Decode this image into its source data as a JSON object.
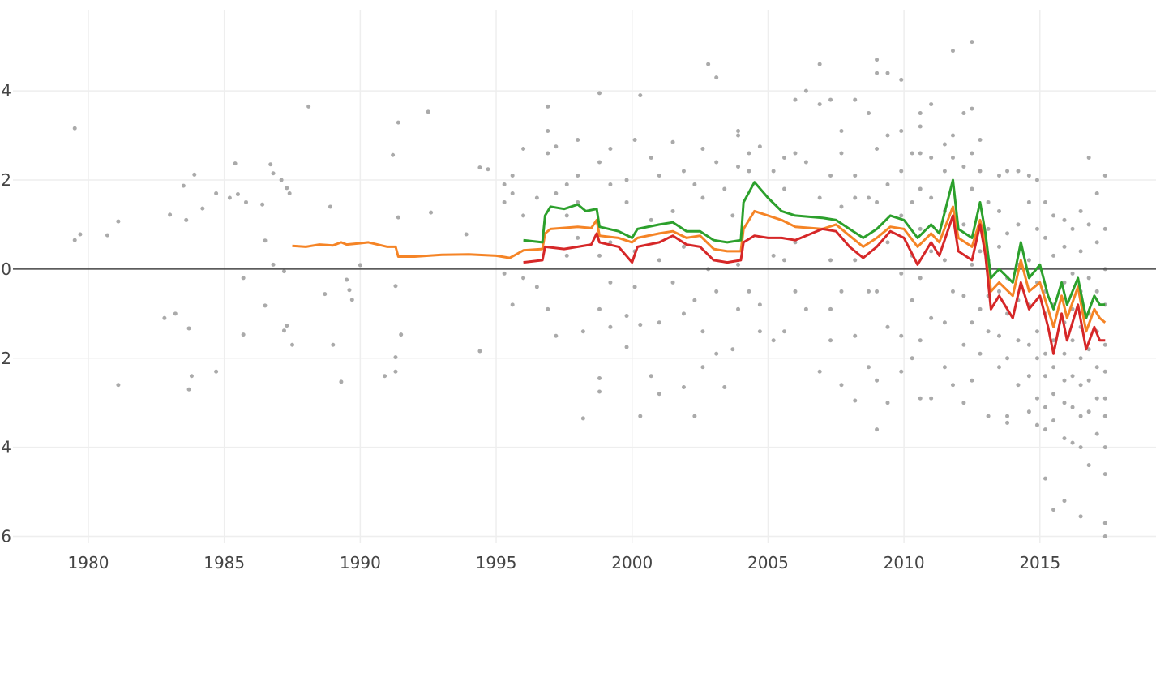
{
  "chart_data": {
    "type": "scatter",
    "title": "",
    "xlabel": "",
    "ylabel": "",
    "xlim": [
      1976.75,
      2019.27
    ],
    "ylim": [
      -6.7,
      6.04
    ],
    "grid": true,
    "x_ticks": [
      1980,
      1985,
      1990,
      1995,
      2000,
      2005,
      2010,
      2015
    ],
    "x_tick_labels": [
      "1980",
      "1985",
      "1990",
      "1995",
      "2000",
      "2005",
      "2010",
      "2015"
    ],
    "y_ticks": [
      4,
      2,
      0,
      -2,
      -4,
      -6
    ],
    "y_tick_labels": [
      "4",
      "2",
      "0",
      "−2",
      "−4",
      "−6"
    ],
    "colors": {
      "scatter": "#aaaaaa",
      "green": "#2ca02c",
      "orange": "#f58426",
      "red": "#d62728",
      "grid": "#eeeeee",
      "zeroline": "#444444"
    },
    "scatter": [
      {
        "x": 1979.5,
        "y": [
          3.16,
          0.65
        ]
      },
      {
        "x": 1979.7,
        "y": [
          0.78
        ]
      },
      {
        "x": 1980.7,
        "y": [
          0.76
        ]
      },
      {
        "x": 1981.1,
        "y": [
          1.07,
          -2.6
        ]
      },
      {
        "x": 1982.8,
        "y": [
          -1.1
        ]
      },
      {
        "x": 1983.0,
        "y": [
          1.22
        ]
      },
      {
        "x": 1983.2,
        "y": [
          -1.0
        ]
      },
      {
        "x": 1983.5,
        "y": [
          1.87
        ]
      },
      {
        "x": 1983.6,
        "y": [
          1.1
        ]
      },
      {
        "x": 1983.7,
        "y": [
          -1.33,
          -2.7
        ]
      },
      {
        "x": 1983.8,
        "y": [
          -2.4
        ]
      },
      {
        "x": 1983.9,
        "y": [
          2.12
        ]
      },
      {
        "x": 1984.2,
        "y": [
          1.36
        ]
      },
      {
        "x": 1984.7,
        "y": [
          -2.3,
          1.7
        ]
      },
      {
        "x": 1985.2,
        "y": [
          1.6
        ]
      },
      {
        "x": 1985.4,
        "y": [
          2.37
        ]
      },
      {
        "x": 1985.5,
        "y": [
          1.68
        ]
      },
      {
        "x": 1985.7,
        "y": [
          -1.47,
          -0.2
        ]
      },
      {
        "x": 1985.8,
        "y": [
          1.5
        ]
      },
      {
        "x": 1986.4,
        "y": [
          1.45
        ]
      },
      {
        "x": 1986.5,
        "y": [
          -0.82,
          0.64
        ]
      },
      {
        "x": 1986.7,
        "y": [
          2.35
        ]
      },
      {
        "x": 1986.8,
        "y": [
          2.15,
          0.1
        ]
      },
      {
        "x": 1987.1,
        "y": [
          2.0
        ]
      },
      {
        "x": 1987.2,
        "y": [
          -0.05,
          -1.38
        ]
      },
      {
        "x": 1987.3,
        "y": [
          -1.27,
          1.82
        ]
      },
      {
        "x": 1987.4,
        "y": [
          1.7
        ]
      },
      {
        "x": 1987.5,
        "y": [
          -1.7
        ]
      },
      {
        "x": 1988.1,
        "y": [
          3.65
        ]
      },
      {
        "x": 1988.7,
        "y": [
          -0.56
        ]
      },
      {
        "x": 1988.9,
        "y": [
          1.4
        ]
      },
      {
        "x": 1989.0,
        "y": [
          -1.7
        ]
      },
      {
        "x": 1989.3,
        "y": [
          -2.53
        ]
      },
      {
        "x": 1989.5,
        "y": [
          -0.24
        ]
      },
      {
        "x": 1989.6,
        "y": [
          -0.47
        ]
      },
      {
        "x": 1989.7,
        "y": [
          -0.69
        ]
      },
      {
        "x": 1990.0,
        "y": [
          0.09
        ]
      },
      {
        "x": 1990.9,
        "y": [
          -2.4
        ]
      },
      {
        "x": 1991.2,
        "y": [
          2.56
        ]
      },
      {
        "x": 1991.3,
        "y": [
          -2.3,
          -1.98,
          -0.38
        ]
      },
      {
        "x": 1991.4,
        "y": [
          3.29,
          1.16
        ]
      },
      {
        "x": 1991.5,
        "y": [
          -1.47
        ]
      },
      {
        "x": 1992.5,
        "y": [
          3.53
        ]
      },
      {
        "x": 1992.6,
        "y": [
          1.27
        ]
      },
      {
        "x": 1993.9,
        "y": [
          0.78
        ]
      },
      {
        "x": 1994.4,
        "y": [
          -1.84,
          2.28
        ]
      },
      {
        "x": 1994.7,
        "y": [
          2.24
        ]
      },
      {
        "x": 1995.3,
        "y": [
          1.9,
          1.5,
          -0.1
        ]
      },
      {
        "x": 1995.6,
        "y": [
          2.1,
          1.7,
          -0.8
        ]
      },
      {
        "x": 1996.0,
        "y": [
          2.7,
          1.2,
          -0.2
        ]
      },
      {
        "x": 1996.5,
        "y": [
          1.6,
          -0.4
        ]
      },
      {
        "x": 1996.9,
        "y": [
          3.65,
          3.1,
          2.6,
          -0.9
        ]
      },
      {
        "x": 1997.2,
        "y": [
          2.75,
          1.7,
          -1.5
        ]
      },
      {
        "x": 1997.6,
        "y": [
          1.9,
          1.2,
          0.3
        ]
      },
      {
        "x": 1998.0,
        "y": [
          2.9,
          2.1,
          1.5,
          0.7
        ]
      },
      {
        "x": 1998.2,
        "y": [
          -3.35,
          -1.4
        ]
      },
      {
        "x": 1998.8,
        "y": [
          3.95,
          2.4,
          -0.9,
          -2.45,
          -2.75,
          0.3
        ]
      },
      {
        "x": 1999.2,
        "y": [
          2.7,
          1.9,
          0.6,
          -0.3,
          -1.3
        ]
      },
      {
        "x": 1999.8,
        "y": [
          2.0,
          1.5,
          -1.05,
          -1.75
        ]
      },
      {
        "x": 2000.1,
        "y": [
          2.9,
          0.4,
          -0.4
        ]
      },
      {
        "x": 2000.3,
        "y": [
          3.9,
          -3.3,
          -1.25
        ]
      },
      {
        "x": 2000.7,
        "y": [
          2.5,
          1.1,
          -2.4
        ]
      },
      {
        "x": 2001.0,
        "y": [
          2.1,
          0.2,
          -2.8,
          -1.2
        ]
      },
      {
        "x": 2001.5,
        "y": [
          2.85,
          1.3,
          -0.3
        ]
      },
      {
        "x": 2001.9,
        "y": [
          2.2,
          0.5,
          -1.0,
          -2.65
        ]
      },
      {
        "x": 2002.3,
        "y": [
          1.9,
          -0.7,
          -3.3
        ]
      },
      {
        "x": 2002.6,
        "y": [
          2.7,
          1.6,
          -1.4,
          -2.2
        ]
      },
      {
        "x": 2002.8,
        "y": [
          4.6,
          0.0
        ]
      },
      {
        "x": 2003.1,
        "y": [
          4.3,
          2.4,
          -0.5,
          -1.9
        ]
      },
      {
        "x": 2003.4,
        "y": [
          1.8,
          -2.65
        ]
      },
      {
        "x": 2003.7,
        "y": [
          1.2,
          -1.8
        ]
      },
      {
        "x": 2003.9,
        "y": [
          3.1,
          3.0,
          2.3,
          0.1,
          -0.9
        ]
      },
      {
        "x": 2004.3,
        "y": [
          2.6,
          2.2,
          -0.5
        ]
      },
      {
        "x": 2004.7,
        "y": [
          2.75,
          -1.4,
          -0.8
        ]
      },
      {
        "x": 2005.2,
        "y": [
          2.2,
          0.3,
          -1.6
        ]
      },
      {
        "x": 2005.6,
        "y": [
          2.5,
          1.8,
          0.2,
          -1.4
        ]
      },
      {
        "x": 2006.0,
        "y": [
          3.8,
          2.6,
          0.6,
          -0.5
        ]
      },
      {
        "x": 2006.4,
        "y": [
          4.0,
          2.4,
          -0.9
        ]
      },
      {
        "x": 2006.9,
        "y": [
          4.6,
          3.7,
          1.6,
          -2.3
        ]
      },
      {
        "x": 2007.3,
        "y": [
          3.8,
          2.1,
          0.2,
          -1.6,
          -0.9
        ]
      },
      {
        "x": 2007.7,
        "y": [
          3.1,
          2.6,
          1.4,
          -2.6,
          -0.5
        ]
      },
      {
        "x": 2008.2,
        "y": [
          3.8,
          2.1,
          1.6,
          0.2,
          -1.5,
          -2.95
        ]
      },
      {
        "x": 2008.7,
        "y": [
          3.5,
          1.6,
          -0.5,
          -2.2
        ]
      },
      {
        "x": 2009.0,
        "y": [
          4.7,
          4.4,
          2.7,
          1.5,
          -0.5,
          -2.5,
          -3.6
        ]
      },
      {
        "x": 2009.4,
        "y": [
          4.4,
          3.0,
          1.9,
          0.6,
          -1.3,
          -3.0
        ]
      },
      {
        "x": 2009.9,
        "y": [
          4.25,
          3.1,
          2.2,
          1.2,
          -0.1,
          -1.5,
          -2.3
        ]
      },
      {
        "x": 2010.3,
        "y": [
          2.6,
          1.5,
          0.3,
          -0.7,
          -2.0
        ]
      },
      {
        "x": 2010.6,
        "y": [
          3.5,
          3.2,
          2.6,
          1.8,
          0.9,
          -0.2,
          -1.6,
          -2.9
        ]
      },
      {
        "x": 2011.0,
        "y": [
          3.7,
          2.5,
          1.6,
          0.4,
          -1.1,
          -2.9
        ]
      },
      {
        "x": 2011.5,
        "y": [
          2.8,
          2.2,
          1.3,
          0.2,
          -1.2,
          -2.2
        ]
      },
      {
        "x": 2011.8,
        "y": [
          4.9,
          3.0,
          2.5,
          -0.5,
          -2.6
        ]
      },
      {
        "x": 2012.2,
        "y": [
          3.5,
          2.3,
          1.0,
          -0.6,
          -1.7,
          -3.0
        ]
      },
      {
        "x": 2012.5,
        "y": [
          5.1,
          3.6,
          2.6,
          1.8,
          0.1,
          -1.2,
          -2.5
        ]
      },
      {
        "x": 2012.8,
        "y": [
          2.9,
          2.2,
          0.4,
          -0.9,
          -1.9
        ]
      },
      {
        "x": 2013.1,
        "y": [
          1.5,
          0.9,
          0.2,
          -0.6,
          -1.4,
          -3.3
        ]
      },
      {
        "x": 2013.5,
        "y": [
          2.1,
          1.3,
          0.5,
          -0.5,
          -1.5,
          -2.2
        ]
      },
      {
        "x": 2013.8,
        "y": [
          2.2,
          0.8,
          -0.2,
          -1.0,
          -2.0,
          -3.3,
          -3.45
        ]
      },
      {
        "x": 2014.2,
        "y": [
          2.2,
          1.0,
          0.1,
          -0.7,
          -1.6,
          -2.6
        ]
      },
      {
        "x": 2014.6,
        "y": [
          2.1,
          1.5,
          0.2,
          -0.8,
          -1.7,
          -2.4,
          -3.2
        ]
      },
      {
        "x": 2014.9,
        "y": [
          2.0,
          0.9,
          -0.3,
          -1.4,
          -2.0,
          -2.9,
          -3.5
        ]
      },
      {
        "x": 2015.2,
        "y": [
          1.5,
          0.7,
          -0.5,
          -1.0,
          -1.9,
          -2.4,
          -3.1,
          -3.6,
          -4.7
        ]
      },
      {
        "x": 2015.5,
        "y": [
          1.2,
          0.3,
          -0.8,
          -1.6,
          -2.2,
          -2.8,
          -3.4,
          -5.4
        ]
      },
      {
        "x": 2015.9,
        "y": [
          1.1,
          0.5,
          -0.3,
          -1.2,
          -1.9,
          -2.5,
          -3.0,
          -3.8,
          -5.2
        ]
      },
      {
        "x": 2016.2,
        "y": [
          0.9,
          -0.1,
          -0.9,
          -1.6,
          -2.4,
          -3.1,
          -3.9
        ]
      },
      {
        "x": 2016.5,
        "y": [
          1.3,
          0.4,
          -0.5,
          -1.3,
          -2.0,
          -2.6,
          -3.3,
          -4.0,
          -5.55
        ]
      },
      {
        "x": 2016.8,
        "y": [
          2.5,
          1.0,
          -0.2,
          -1.0,
          -1.8,
          -2.5,
          -3.2,
          -4.4
        ]
      },
      {
        "x": 2017.1,
        "y": [
          1.7,
          0.6,
          -0.5,
          -1.4,
          -2.2,
          -2.9,
          -3.7
        ]
      },
      {
        "x": 2017.4,
        "y": [
          2.1,
          0.9,
          0.0,
          -0.8,
          -1.7,
          -2.3,
          -2.9,
          -3.3,
          -4.0,
          -4.6,
          -5.7,
          -6.0
        ]
      }
    ],
    "series": [
      {
        "color_key": "orange",
        "x": [
          1987.5,
          1988,
          1988.5,
          1989,
          1989.3,
          1989.5,
          1990,
          1990.3,
          1991,
          1991.3,
          1991.4,
          1992,
          1993,
          1994,
          1995,
          1995.5,
          1995.8,
          1996,
          1996.7,
          1996.8,
          1997,
          1998,
          1998.5,
          1998.7,
          1998.8,
          1999.5,
          2000,
          2000.2,
          2001,
          2001.5,
          2002,
          2002.5,
          2003,
          2003.5,
          2004,
          2004.1,
          2004.5,
          2005,
          2005.5,
          2006,
          2007,
          2007.5,
          2008,
          2008.5,
          2009,
          2009.5,
          2010,
          2010.5,
          2011,
          2011.3,
          2011.8,
          2012,
          2012.5,
          2012.8,
          2013,
          2013.2,
          2013.5,
          2014,
          2014.3,
          2014.6,
          2015,
          2015.3,
          2015.5,
          2015.8,
          2016,
          2016.4,
          2016.7,
          2017,
          2017.2,
          2017.4
        ],
        "y": [
          0.52,
          0.5,
          0.55,
          0.53,
          0.6,
          0.55,
          0.58,
          0.6,
          0.5,
          0.5,
          0.28,
          0.28,
          0.32,
          0.33,
          0.3,
          0.25,
          0.35,
          0.42,
          0.45,
          0.8,
          0.9,
          0.95,
          0.92,
          1.1,
          0.75,
          0.7,
          0.6,
          0.7,
          0.8,
          0.85,
          0.7,
          0.75,
          0.45,
          0.4,
          0.4,
          0.9,
          1.3,
          1.2,
          1.1,
          0.95,
          0.9,
          1.0,
          0.75,
          0.5,
          0.7,
          0.95,
          0.9,
          0.5,
          0.8,
          0.6,
          1.4,
          0.7,
          0.5,
          1.1,
          0.6,
          -0.5,
          -0.3,
          -0.6,
          0.2,
          -0.5,
          -0.3,
          -0.9,
          -1.3,
          -0.6,
          -1.1,
          -0.4,
          -1.4,
          -0.9,
          -1.1,
          -1.2
        ]
      },
      {
        "color_key": "green",
        "x": [
          1996,
          1996.7,
          1996.8,
          1997,
          1997.5,
          1998,
          1998.3,
          1998.7,
          1998.8,
          1999.5,
          2000,
          2000.2,
          2001,
          2001.5,
          2002,
          2002.5,
          2003,
          2003.5,
          2004,
          2004.1,
          2004.5,
          2005,
          2005.5,
          2006,
          2007,
          2007.5,
          2008,
          2008.5,
          2009,
          2009.5,
          2010,
          2010.5,
          2011,
          2011.3,
          2011.8,
          2012,
          2012.5,
          2012.8,
          2013,
          2013.2,
          2013.5,
          2014,
          2014.3,
          2014.6,
          2015,
          2015.3,
          2015.5,
          2015.8,
          2016,
          2016.4,
          2016.7,
          2017,
          2017.2,
          2017.4
        ],
        "y": [
          0.65,
          0.6,
          1.2,
          1.4,
          1.35,
          1.45,
          1.3,
          1.35,
          0.95,
          0.85,
          0.7,
          0.9,
          1.0,
          1.05,
          0.85,
          0.85,
          0.65,
          0.6,
          0.65,
          1.5,
          1.95,
          1.6,
          1.3,
          1.2,
          1.15,
          1.1,
          0.9,
          0.7,
          0.9,
          1.2,
          1.1,
          0.7,
          1.0,
          0.8,
          2.0,
          0.9,
          0.7,
          1.5,
          0.8,
          -0.2,
          0.0,
          -0.3,
          0.6,
          -0.2,
          0.1,
          -0.6,
          -0.9,
          -0.3,
          -0.8,
          -0.2,
          -1.1,
          -0.6,
          -0.8,
          -0.8
        ]
      },
      {
        "color_key": "red",
        "x": [
          1996,
          1996.7,
          1996.8,
          1997.5,
          1998,
          1998.5,
          1998.7,
          1998.8,
          1999.5,
          2000,
          2000.2,
          2001,
          2001.5,
          2002,
          2002.5,
          2003,
          2003.5,
          2004,
          2004.1,
          2004.5,
          2005,
          2005.5,
          2006,
          2007,
          2007.5,
          2008,
          2008.5,
          2009,
          2009.5,
          2010,
          2010.5,
          2011,
          2011.3,
          2011.8,
          2012,
          2012.5,
          2012.8,
          2013,
          2013.2,
          2013.5,
          2014,
          2014.3,
          2014.6,
          2015,
          2015.3,
          2015.5,
          2015.8,
          2016,
          2016.4,
          2016.7,
          2017,
          2017.2,
          2017.4
        ],
        "y": [
          0.15,
          0.2,
          0.5,
          0.45,
          0.5,
          0.55,
          0.8,
          0.6,
          0.5,
          0.15,
          0.5,
          0.6,
          0.75,
          0.55,
          0.5,
          0.2,
          0.15,
          0.2,
          0.6,
          0.75,
          0.7,
          0.7,
          0.65,
          0.9,
          0.85,
          0.5,
          0.25,
          0.5,
          0.85,
          0.7,
          0.1,
          0.6,
          0.3,
          1.2,
          0.4,
          0.2,
          1.0,
          0.3,
          -0.9,
          -0.6,
          -1.1,
          -0.3,
          -0.9,
          -0.6,
          -1.3,
          -1.9,
          -1.0,
          -1.6,
          -0.8,
          -1.8,
          -1.3,
          -1.6,
          -1.6
        ]
      }
    ]
  }
}
